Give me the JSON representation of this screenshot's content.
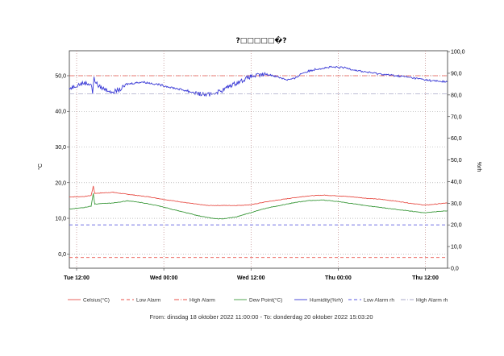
{
  "chart_data": {
    "type": "line",
    "title": "?□□□□□�?",
    "ylabel_left": "°C",
    "ylabel_right": "%rh",
    "y_left_ticks": [
      "0,0",
      "10,0",
      "20,0",
      "30,0",
      "40,0",
      "50,0"
    ],
    "y_left_ticks_num": [
      0,
      10,
      20,
      30,
      40,
      50
    ],
    "y_left_range": [
      -4,
      57
    ],
    "y_right_ticks": [
      "0,0",
      "10,0",
      "20,0",
      "30,0",
      "40,0",
      "50,0",
      "60,0",
      "70,0",
      "80,0",
      "90,0",
      "100,0"
    ],
    "y_right_ticks_num": [
      0,
      10,
      20,
      30,
      40,
      50,
      60,
      70,
      80,
      90,
      100
    ],
    "y_right_range": [
      0,
      100.4
    ],
    "x_ticks": [
      "Tue 12:00",
      "Wed 00:00",
      "Wed 12:00",
      "Thu 00:00",
      "Thu 12:00"
    ],
    "x_ticks_hours": [
      1,
      13,
      25,
      37,
      49
    ],
    "x_range_hours": [
      0,
      52.05
    ],
    "grid": true,
    "legend_placement": "bottom",
    "footer": "From: dinsdag 18 oktober 2022 11:00:00  -  To: donderdag 20 oktober 2022 15:03:20",
    "series": [
      {
        "name": "Celsius(°C)",
        "axis": "left",
        "color": "#e8524a",
        "style": "solid",
        "x": [
          0,
          2,
          3,
          3.3,
          3.5,
          6,
          7,
          9,
          11,
          13,
          15,
          17,
          19,
          21,
          23,
          25,
          27,
          29,
          31,
          33,
          35,
          37,
          39,
          41,
          43,
          45,
          47,
          49,
          51,
          52
        ],
        "y": [
          16.0,
          16.1,
          16.4,
          19.0,
          17.0,
          17.3,
          17.0,
          16.5,
          16.0,
          15.3,
          14.7,
          14.1,
          13.6,
          13.6,
          13.6,
          13.8,
          14.6,
          15.2,
          15.8,
          16.3,
          16.5,
          16.3,
          16.0,
          15.6,
          15.3,
          14.8,
          14.2,
          13.7,
          14.1,
          14.3
        ]
      },
      {
        "name": "Low Alarm",
        "axis": "left",
        "color": "#e8524a",
        "style": "dash",
        "x": [
          0,
          52
        ],
        "y": [
          -1,
          -1
        ]
      },
      {
        "name": "High Alarm",
        "axis": "left",
        "color": "#e8524a",
        "style": "dashdot",
        "x": [
          0,
          52
        ],
        "y": [
          50,
          50
        ]
      },
      {
        "name": "Dew Point(°C)",
        "axis": "left",
        "color": "#3e9a3e",
        "style": "solid",
        "x": [
          0,
          2,
          3,
          3.3,
          3.5,
          6,
          8,
          10,
          12,
          14,
          16,
          18,
          20,
          21,
          23,
          25,
          27,
          29,
          31,
          33,
          35,
          37,
          39,
          41,
          43,
          45,
          47,
          49,
          51,
          52
        ],
        "y": [
          12.6,
          13.0,
          13.4,
          17.0,
          14.0,
          14.3,
          14.9,
          14.4,
          13.6,
          12.6,
          11.6,
          10.6,
          9.9,
          9.8,
          10.4,
          11.6,
          12.8,
          13.6,
          14.4,
          15.0,
          15.1,
          14.7,
          14.1,
          13.5,
          13.0,
          12.5,
          12.0,
          11.5,
          12.0,
          12.1
        ]
      },
      {
        "name": "Humidity(%rh)",
        "axis": "right",
        "color": "#3a3ad6",
        "style": "solid",
        "x": [
          0,
          1,
          2,
          3,
          3.2,
          3.4,
          4,
          5,
          6,
          7,
          8,
          10,
          12,
          14,
          16,
          18,
          19,
          20,
          21,
          22,
          23,
          24,
          25,
          26,
          27,
          28,
          29,
          30,
          31,
          32,
          34,
          36,
          38,
          40,
          42,
          44,
          46,
          48,
          50,
          52
        ],
        "y": [
          83.0,
          84.5,
          85.5,
          85.0,
          81.0,
          87.5,
          84.0,
          82.5,
          81.5,
          82.5,
          85.0,
          86.0,
          85.0,
          83.5,
          82.0,
          80.5,
          80.0,
          81.0,
          82.0,
          84.0,
          85.5,
          87.0,
          88.5,
          89.0,
          89.5,
          89.0,
          88.0,
          87.0,
          87.5,
          90.0,
          92.0,
          92.8,
          92.5,
          91.0,
          90.0,
          89.2,
          88.5,
          87.5,
          86.5,
          86.0
        ]
      },
      {
        "name": "Low Alarm rh",
        "axis": "right",
        "color": "#5a5ae0",
        "style": "dash",
        "x": [
          0,
          52
        ],
        "y": [
          20,
          20
        ]
      },
      {
        "name": "High Alarm rh",
        "axis": "right",
        "color": "#a8a8c8",
        "style": "dashdot",
        "x": [
          0,
          52
        ],
        "y": [
          80.5,
          80.5
        ]
      }
    ]
  }
}
